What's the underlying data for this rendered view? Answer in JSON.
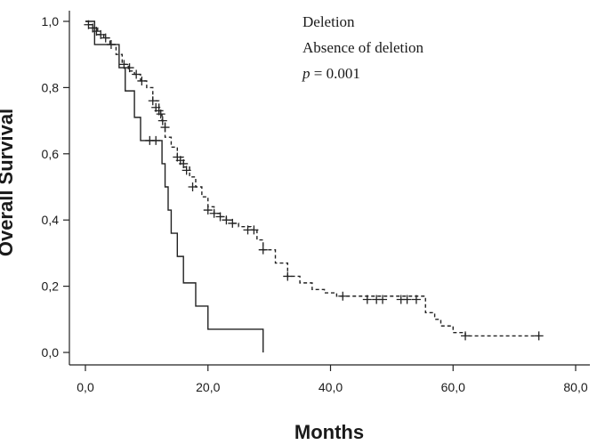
{
  "chart_data": {
    "type": "line",
    "chart_subtype": "kaplan-meier",
    "xlabel": "Months",
    "ylabel": "Overall Survival",
    "xlim": [
      0,
      80
    ],
    "ylim": [
      0,
      1
    ],
    "x_ticks": [
      0,
      20,
      40,
      60,
      80
    ],
    "x_tick_labels": [
      "0,0",
      "20,0",
      "40,0",
      "60,0",
      "80,0"
    ],
    "y_ticks": [
      0,
      0.2,
      0.4,
      0.6,
      0.8,
      1.0
    ],
    "y_tick_labels": [
      "0,0",
      "0,2",
      "0,4",
      "0,6",
      "0,8",
      "1,0"
    ],
    "grid": false,
    "legend_position": "top-right",
    "legend": [
      "Deletion",
      "Absence of deletion"
    ],
    "annotation": {
      "prefix": "p",
      "text": " = 0.001"
    },
    "series": [
      {
        "name": "Deletion",
        "style": "solid",
        "steps": [
          [
            0,
            1.0
          ],
          [
            1.5,
            0.93
          ],
          [
            5.5,
            0.86
          ],
          [
            6.5,
            0.79
          ],
          [
            8,
            0.71
          ],
          [
            9,
            0.64
          ],
          [
            12,
            0.64
          ],
          [
            12.5,
            0.57
          ],
          [
            13,
            0.5
          ],
          [
            13.5,
            0.43
          ],
          [
            14,
            0.36
          ],
          [
            15,
            0.29
          ],
          [
            16,
            0.21
          ],
          [
            18,
            0.14
          ],
          [
            20,
            0.07
          ],
          [
            29,
            0.07
          ],
          [
            29,
            0.0
          ]
        ],
        "censored": [
          [
            10.5,
            0.64
          ],
          [
            11.5,
            0.64
          ]
        ]
      },
      {
        "name": "Absence of deletion",
        "style": "dashed",
        "steps": [
          [
            0,
            1.0
          ],
          [
            0.5,
            0.99
          ],
          [
            1,
            0.98
          ],
          [
            2,
            0.96
          ],
          [
            3,
            0.95
          ],
          [
            4,
            0.93
          ],
          [
            5,
            0.9
          ],
          [
            6,
            0.87
          ],
          [
            7,
            0.85
          ],
          [
            8,
            0.84
          ],
          [
            9,
            0.82
          ],
          [
            10,
            0.8
          ],
          [
            11,
            0.76
          ],
          [
            12,
            0.72
          ],
          [
            12.5,
            0.7
          ],
          [
            13,
            0.65
          ],
          [
            14,
            0.62
          ],
          [
            15,
            0.59
          ],
          [
            16,
            0.56
          ],
          [
            17,
            0.53
          ],
          [
            18,
            0.5
          ],
          [
            19,
            0.47
          ],
          [
            20,
            0.44
          ],
          [
            21,
            0.42
          ],
          [
            22,
            0.41
          ],
          [
            23,
            0.4
          ],
          [
            24,
            0.39
          ],
          [
            25,
            0.38
          ],
          [
            27,
            0.37
          ],
          [
            28,
            0.34
          ],
          [
            29,
            0.31
          ],
          [
            31,
            0.27
          ],
          [
            33,
            0.23
          ],
          [
            35,
            0.21
          ],
          [
            37,
            0.19
          ],
          [
            39,
            0.18
          ],
          [
            41,
            0.17
          ],
          [
            55,
            0.17
          ],
          [
            55.5,
            0.12
          ],
          [
            57,
            0.1
          ],
          [
            58,
            0.08
          ],
          [
            60,
            0.06
          ],
          [
            62,
            0.05
          ],
          [
            74,
            0.05
          ]
        ],
        "censored": [
          [
            0.5,
            0.99
          ],
          [
            1.2,
            0.98
          ],
          [
            1.8,
            0.97
          ],
          [
            2.5,
            0.96
          ],
          [
            3.3,
            0.95
          ],
          [
            4.2,
            0.93
          ],
          [
            6.3,
            0.87
          ],
          [
            7.2,
            0.86
          ],
          [
            8.3,
            0.84
          ],
          [
            9.2,
            0.82
          ],
          [
            11,
            0.76
          ],
          [
            11.5,
            0.74
          ],
          [
            12,
            0.73
          ],
          [
            12.3,
            0.72
          ],
          [
            12.6,
            0.7
          ],
          [
            13,
            0.68
          ],
          [
            15,
            0.59
          ],
          [
            15.5,
            0.58
          ],
          [
            16,
            0.57
          ],
          [
            16.5,
            0.55
          ],
          [
            17.5,
            0.5
          ],
          [
            20,
            0.43
          ],
          [
            21,
            0.42
          ],
          [
            22,
            0.41
          ],
          [
            23,
            0.4
          ],
          [
            24,
            0.39
          ],
          [
            26.5,
            0.37
          ],
          [
            27.5,
            0.37
          ],
          [
            29,
            0.31
          ],
          [
            33,
            0.23
          ],
          [
            42,
            0.17
          ],
          [
            46,
            0.16
          ],
          [
            47.5,
            0.16
          ],
          [
            48.5,
            0.16
          ],
          [
            51.5,
            0.16
          ],
          [
            52.5,
            0.16
          ],
          [
            54,
            0.16
          ],
          [
            62,
            0.05
          ],
          [
            74,
            0.05
          ]
        ]
      }
    ]
  }
}
